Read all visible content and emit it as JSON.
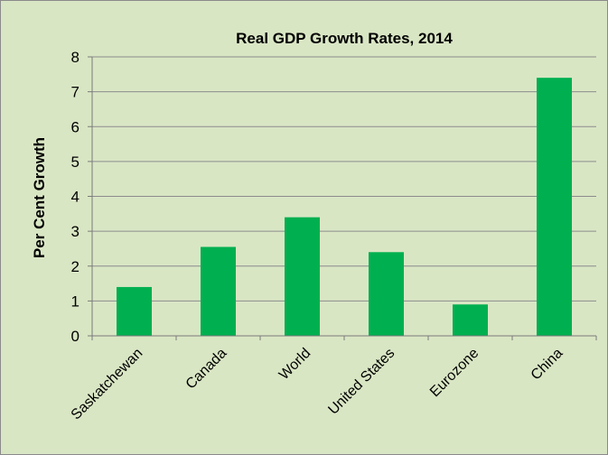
{
  "chart_data": {
    "type": "bar",
    "title": "Real GDP Growth Rates, 2014",
    "xlabel": "",
    "ylabel": "Per Cent Growth",
    "categories": [
      "Saskatchewan",
      "Canada",
      "World",
      "United States",
      "Eurozone",
      "China"
    ],
    "values": [
      1.4,
      2.55,
      3.4,
      2.4,
      0.9,
      7.4
    ],
    "ylim": [
      0,
      8
    ],
    "yticks": [
      "0",
      "1",
      "2",
      "3",
      "4",
      "5",
      "6",
      "7",
      "8"
    ],
    "grid": true,
    "legend": "none",
    "colors": {
      "bar": "#00b050",
      "background": "#d9e6c4",
      "gridline": "#8c8c8c"
    }
  }
}
